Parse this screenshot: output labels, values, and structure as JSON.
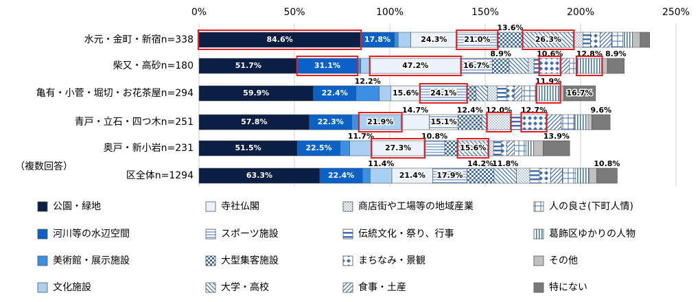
{
  "chart_data": {
    "type": "stacked_barh",
    "annotation": "（複数回答）",
    "categories": [
      "水元・金町・新宿n=338",
      "柴又・高砂n=180",
      "亀有・小菅・堀切・お花茶屋n=294",
      "青戸・立石・四つ木n=251",
      "奥戸・新小岩n=231",
      "区全体n=1294"
    ],
    "xlim": [
      0,
      250
    ],
    "xticks": [
      {
        "value": 0,
        "label": "0%"
      },
      {
        "value": 50,
        "label": "50%"
      },
      {
        "value": 100,
        "label": "100%"
      },
      {
        "value": 150,
        "label": "150%"
      },
      {
        "value": 200,
        "label": "200%"
      },
      {
        "value": 250,
        "label": "250%"
      }
    ],
    "grid": true,
    "highlight_color": "#e02020",
    "highlighted": [
      [
        0,
        0
      ],
      [
        0,
        5
      ],
      [
        0,
        7
      ],
      [
        1,
        1
      ],
      [
        1,
        4
      ],
      [
        1,
        10
      ],
      [
        1,
        13
      ],
      [
        2,
        5
      ],
      [
        2,
        13
      ],
      [
        3,
        3
      ],
      [
        3,
        8
      ],
      [
        3,
        10
      ],
      [
        4,
        4
      ],
      [
        4,
        7
      ]
    ],
    "series": [
      {
        "name": "公園・緑地",
        "color": "#0b1f45",
        "values": [
          84.6,
          51.7,
          59.9,
          57.8,
          51.5,
          63.3
        ],
        "value_labels": [
          "84.6%",
          "51.7%",
          "59.9%",
          "57.8%",
          "51.5%",
          "63.3%"
        ]
      },
      {
        "name": "河川等の水辺空間",
        "color": "#0a62c8",
        "values": [
          17.8,
          31.1,
          22.4,
          22.3,
          22.5,
          22.4
        ],
        "value_labels": [
          "17.8%",
          "31.1%",
          "22.4%",
          "22.3%",
          "22.5%",
          "22.4%"
        ]
      },
      {
        "name": "美術館・展示施設",
        "color": "#3a90e4",
        "values": [
          2,
          2,
          12.2,
          4,
          5,
          4
        ],
        "value_labels": [
          null,
          null,
          "12.2%",
          null,
          null,
          null
        ]
      },
      {
        "name": "文化施設",
        "color": "#a9d0f2",
        "values": [
          6.6,
          5,
          6,
          21.9,
          11.7,
          11.4
        ],
        "value_labels": [
          null,
          null,
          null,
          "21.9%",
          "11.7%",
          "11.4%"
        ]
      },
      {
        "name": "寺社仏閣",
        "color": "#eaf3fc",
        "values": [
          24.3,
          47.2,
          15.6,
          14.7,
          27.3,
          21.4
        ],
        "value_labels": [
          "24.3%",
          "47.2%",
          "15.6%",
          "14.7%",
          "27.3%",
          "21.4%"
        ]
      },
      {
        "name": "スポーツ施設",
        "pattern": "hlines",
        "values": [
          21.0,
          16.7,
          24.1,
          15.1,
          10.8,
          17.9
        ],
        "value_labels": [
          "21.0%",
          "16.7%",
          "24.1%",
          "15.1%",
          "10.8%",
          "17.9%"
        ]
      },
      {
        "name": "大型集客施設",
        "pattern": "checker",
        "values": [
          13.6,
          8.9,
          5,
          12.4,
          7,
          14.2
        ],
        "value_labels": [
          "13.6%",
          "8.9%",
          null,
          "12.4%",
          null,
          "14.2%"
        ]
      },
      {
        "name": "大学・高校",
        "pattern": "diag",
        "values": [
          26.3,
          10,
          6,
          3,
          15.6,
          11.8
        ],
        "value_labels": [
          "26.3%",
          null,
          null,
          null,
          "15.6%",
          "11.8%"
        ]
      },
      {
        "name": "商店街や工場等の地域産業",
        "pattern": "dots",
        "values": [
          5,
          3,
          5,
          12.0,
          3,
          7
        ],
        "value_labels": [
          null,
          null,
          null,
          "12.0%",
          null,
          null
        ]
      },
      {
        "name": "伝統文化・祭り、行事",
        "pattern": "thick",
        "values": [
          4,
          3,
          5,
          6,
          4,
          5
        ],
        "value_labels": [
          null,
          null,
          null,
          null,
          null,
          null
        ]
      },
      {
        "name": "まちなみ・景観",
        "pattern": "diamond",
        "values": [
          5,
          10.6,
          4,
          12.7,
          3,
          6
        ],
        "value_labels": [
          null,
          "10.6%",
          null,
          "12.7%",
          null,
          null
        ]
      },
      {
        "name": "食事・土産",
        "pattern": "diag2",
        "values": [
          6,
          5,
          4,
          8,
          4,
          6
        ],
        "value_labels": [
          null,
          null,
          null,
          null,
          null,
          null
        ]
      },
      {
        "name": "人の良さ(下町人情)",
        "pattern": "gridp",
        "values": [
          6,
          4,
          8,
          7,
          6,
          7
        ],
        "value_labels": [
          null,
          null,
          null,
          null,
          null,
          null
        ]
      },
      {
        "name": "葛飾区ゆかりの人物",
        "pattern": "vlines",
        "values": [
          5,
          12.8,
          11.9,
          7,
          4,
          7
        ],
        "value_labels": [
          null,
          "12.8%",
          "11.9%",
          null,
          null,
          null
        ]
      },
      {
        "name": "その他",
        "color": "#c0c0c0",
        "values": [
          4,
          3,
          2,
          2,
          5,
          4
        ],
        "value_labels": [
          null,
          null,
          null,
          null,
          null,
          null
        ]
      },
      {
        "name": "特にない",
        "color": "#7a7a7a",
        "values": [
          5,
          8.9,
          16.7,
          9.6,
          13.9,
          10.8
        ],
        "value_labels": [
          null,
          "8.9%",
          "16.7%",
          "9.6%",
          "13.9%",
          "10.8%"
        ]
      }
    ]
  }
}
